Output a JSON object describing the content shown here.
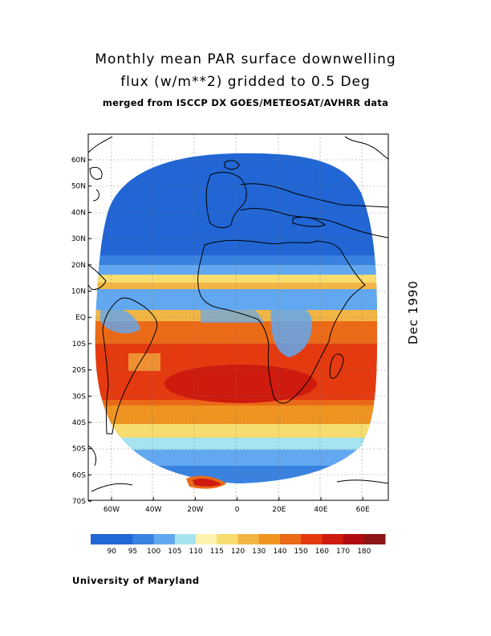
{
  "title": {
    "line1": "Monthly mean PAR surface downwelling",
    "line2": "flux (w/m**2) gridded to 0.5 Deg",
    "subtitle": "merged from ISCCP DX GOES/METEOSAT/AVHRR data"
  },
  "date_label": "Dec 1990",
  "credit": "University of Maryland",
  "map": {
    "lat_labels": [
      "60N",
      "50N",
      "40N",
      "30N",
      "20N",
      "10N",
      "EQ",
      "10S",
      "20S",
      "30S",
      "40S",
      "50S",
      "60S",
      "70S"
    ],
    "lon_labels": [
      "60W",
      "40W",
      "20W",
      "0",
      "20E",
      "40E",
      "60E"
    ],
    "lat_range": [
      -70,
      70
    ],
    "lon_range": [
      -70,
      70
    ],
    "grid": true
  },
  "colorbar": {
    "labels": [
      "90",
      "95",
      "100",
      "105",
      "110",
      "115",
      "120",
      "130",
      "140",
      "150",
      "160",
      "170",
      "180"
    ],
    "colors": [
      "#2166d4",
      "#3a82e0",
      "#62a8f0",
      "#a6e4f0",
      "#fff3b0",
      "#f7dc6f",
      "#f3b543",
      "#ef9420",
      "#eb6a18",
      "#e53a10",
      "#cf1a0e",
      "#b10d10",
      "#8c1616"
    ]
  }
}
